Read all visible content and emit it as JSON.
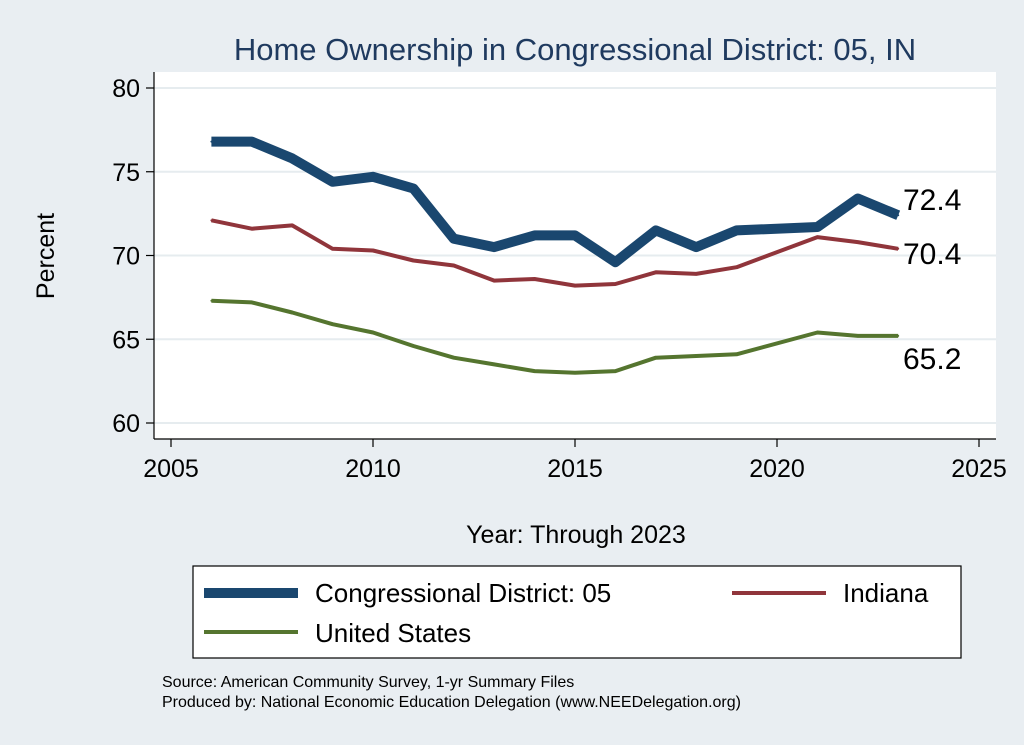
{
  "chart_data": {
    "type": "line",
    "title": "Home Ownership in Congressional District:  05, IN",
    "xlabel": "Year: Through 2023",
    "ylabel": "Percent",
    "xlim": [
      2005,
      2025
    ],
    "ylim": [
      60,
      80
    ],
    "xticks": [
      "2005",
      "2010",
      "2015",
      "2020",
      "2025"
    ],
    "yticks": [
      "60",
      "65",
      "70",
      "75",
      "80"
    ],
    "grid": "horizontal",
    "legend_position": "bottom",
    "series": [
      {
        "name": "Congressional District:  05",
        "color": "#1a476f",
        "end_label": "72.4",
        "points": [
          [
            2006,
            76.8
          ],
          [
            2007,
            76.8
          ],
          [
            2008,
            75.8
          ],
          [
            2009,
            74.4
          ],
          [
            2010,
            74.7
          ],
          [
            2011,
            74.0
          ],
          [
            2012,
            71.0
          ],
          [
            2013,
            70.5
          ],
          [
            2014,
            71.2
          ],
          [
            2015,
            71.2
          ],
          [
            2016,
            69.6
          ],
          [
            2017,
            71.5
          ],
          [
            2018,
            70.5
          ],
          [
            2019,
            71.5
          ],
          [
            2021,
            71.7
          ],
          [
            2022,
            73.4
          ],
          [
            2023,
            72.4
          ]
        ]
      },
      {
        "name": "Indiana",
        "color": "#90353b",
        "end_label": "70.4",
        "points": [
          [
            2006,
            72.1
          ],
          [
            2007,
            71.6
          ],
          [
            2008,
            71.8
          ],
          [
            2009,
            70.4
          ],
          [
            2010,
            70.3
          ],
          [
            2011,
            69.7
          ],
          [
            2012,
            69.4
          ],
          [
            2013,
            68.5
          ],
          [
            2014,
            68.6
          ],
          [
            2015,
            68.2
          ],
          [
            2016,
            68.3
          ],
          [
            2017,
            69.0
          ],
          [
            2018,
            68.9
          ],
          [
            2019,
            69.3
          ],
          [
            2021,
            71.1
          ],
          [
            2022,
            70.8
          ],
          [
            2023,
            70.4
          ]
        ]
      },
      {
        "name": "United States",
        "color": "#55752f",
        "end_label": "65.2",
        "points": [
          [
            2006,
            67.3
          ],
          [
            2007,
            67.2
          ],
          [
            2008,
            66.6
          ],
          [
            2009,
            65.9
          ],
          [
            2010,
            65.4
          ],
          [
            2011,
            64.6
          ],
          [
            2012,
            63.9
          ],
          [
            2013,
            63.5
          ],
          [
            2014,
            63.1
          ],
          [
            2015,
            63.0
          ],
          [
            2016,
            63.1
          ],
          [
            2017,
            63.9
          ],
          [
            2018,
            64.0
          ],
          [
            2019,
            64.1
          ],
          [
            2021,
            65.4
          ],
          [
            2022,
            65.2
          ],
          [
            2023,
            65.2
          ]
        ]
      }
    ]
  },
  "source": "Source: American Community Survey, 1-yr Summary Files",
  "producer": "Produced by: National Economic Education Delegation (www.NEEDelegation.org)"
}
